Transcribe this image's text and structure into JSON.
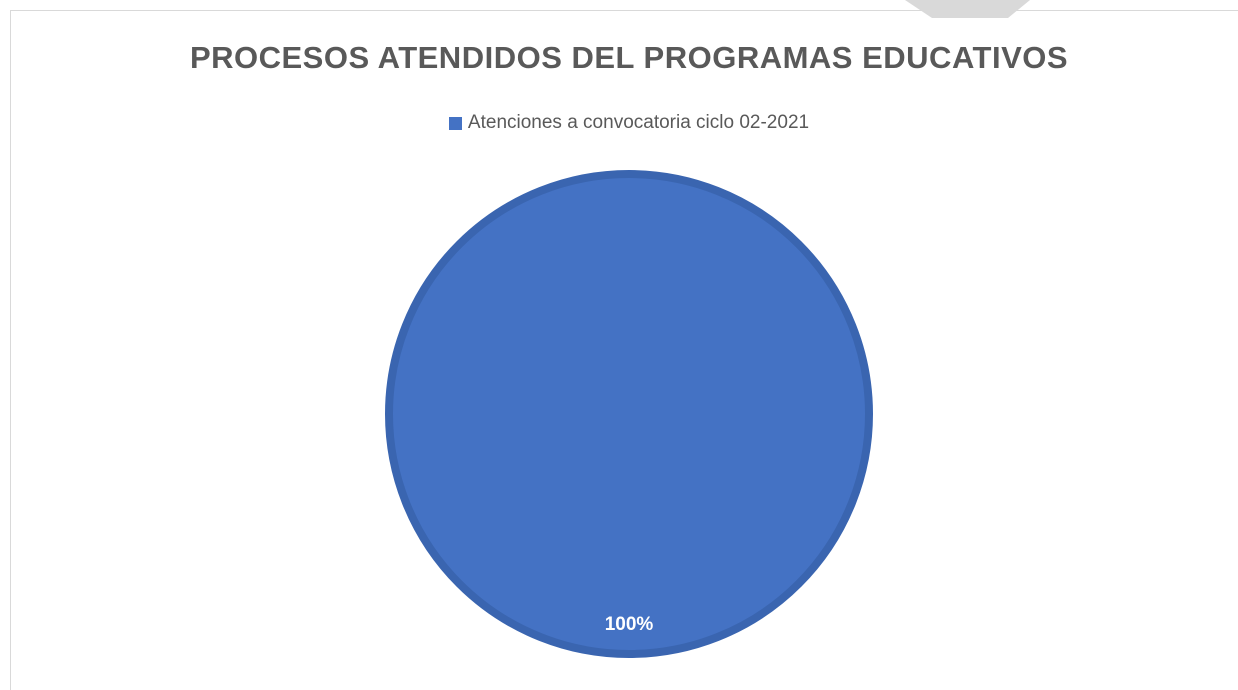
{
  "chart_data": {
    "type": "pie",
    "title": "PROCESOS ATENDIDOS DEL PROGRAMAS EDUCATIVOS",
    "legend_position": "top",
    "categories": [
      "Atenciones a convocatoria ciclo 02-2021"
    ],
    "values": [
      100
    ],
    "data_labels": [
      "100%"
    ],
    "colors": [
      "#4472C4"
    ],
    "slice_border_color": "#3A65B0"
  },
  "decoration": {
    "corner_shape_color": "#D9D9D9"
  }
}
